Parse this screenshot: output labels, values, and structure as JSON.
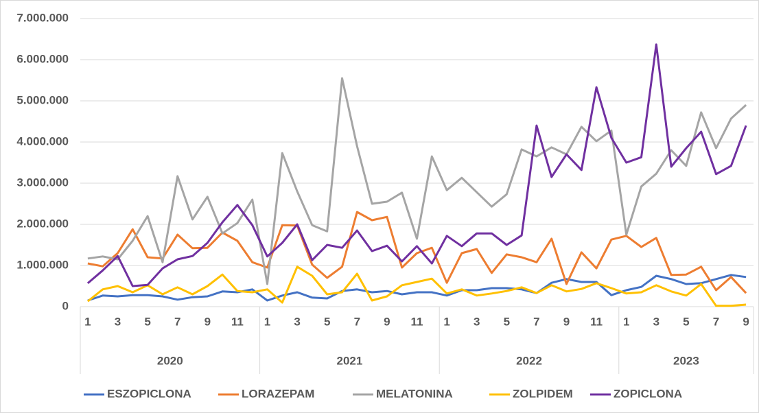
{
  "chart_data": {
    "type": "line",
    "categories": [
      "1",
      null,
      "3",
      null,
      "5",
      null,
      "7",
      null,
      "9",
      null,
      "11",
      null,
      "1",
      null,
      "3",
      null,
      "5",
      null,
      "7",
      null,
      "9",
      null,
      "11",
      null,
      "1",
      null,
      "3",
      null,
      "5",
      null,
      "7",
      null,
      "9",
      null,
      "11",
      null,
      "1",
      null,
      "3",
      null,
      "5",
      null,
      "7",
      null,
      "9"
    ],
    "x_groups": [
      {
        "label": "2020",
        "count": 12
      },
      {
        "label": "2021",
        "count": 12
      },
      {
        "label": "2022",
        "count": 12
      },
      {
        "label": "2023",
        "count": 9
      }
    ],
    "ylim": [
      0,
      7000000
    ],
    "yticks": [
      0,
      {
        "value": 1000000,
        "label": "1.000.000"
      },
      {
        "value": 2000000,
        "label": "2.000.000"
      },
      {
        "value": 3000000,
        "label": "3.000.000"
      },
      {
        "value": 4000000,
        "label": "4.000.000"
      },
      {
        "value": 5000000,
        "label": "5.000.000"
      },
      {
        "value": 6000000,
        "label": "6.000.000"
      },
      {
        "value": 7000000,
        "label": "7.000.000"
      }
    ],
    "grid": true,
    "legend": "bottom",
    "series": [
      {
        "name": "ESZOPICLONA",
        "color": "#4472c4",
        "values": [
          150000,
          270000,
          250000,
          280000,
          280000,
          250000,
          170000,
          230000,
          250000,
          370000,
          350000,
          420000,
          150000,
          270000,
          350000,
          220000,
          200000,
          380000,
          420000,
          350000,
          380000,
          300000,
          350000,
          350000,
          270000,
          400000,
          400000,
          450000,
          450000,
          420000,
          330000,
          580000,
          670000,
          600000,
          600000,
          280000,
          400000,
          480000,
          750000,
          670000,
          550000,
          570000,
          670000,
          770000,
          720000
        ]
      },
      {
        "name": "LORAZEPAM",
        "color": "#ed7d31",
        "values": [
          1050000,
          980000,
          1300000,
          1880000,
          1200000,
          1170000,
          1750000,
          1420000,
          1430000,
          1800000,
          1600000,
          1080000,
          950000,
          1980000,
          1970000,
          1020000,
          700000,
          970000,
          2300000,
          2100000,
          2180000,
          950000,
          1300000,
          1430000,
          580000,
          1300000,
          1400000,
          820000,
          1270000,
          1200000,
          1080000,
          1650000,
          550000,
          1320000,
          930000,
          1630000,
          1720000,
          1450000,
          1670000,
          770000,
          780000,
          970000,
          400000,
          720000,
          330000
        ]
      },
      {
        "name": "MELATONINA",
        "color": "#a5a5a5",
        "values": [
          1170000,
          1220000,
          1150000,
          1600000,
          2200000,
          1080000,
          3170000,
          2120000,
          2670000,
          1780000,
          2030000,
          2600000,
          550000,
          3730000,
          2800000,
          1980000,
          1830000,
          5550000,
          3900000,
          2500000,
          2550000,
          2770000,
          1650000,
          3650000,
          2830000,
          3130000,
          2780000,
          2430000,
          2730000,
          3820000,
          3650000,
          3870000,
          3700000,
          4370000,
          4020000,
          4280000,
          1750000,
          2920000,
          3230000,
          3800000,
          3420000,
          4720000,
          3850000,
          4570000,
          4900000
        ]
      },
      {
        "name": "ZOLPIDEM",
        "color": "#ffc000",
        "values": [
          130000,
          420000,
          500000,
          350000,
          520000,
          300000,
          470000,
          300000,
          500000,
          780000,
          380000,
          350000,
          420000,
          100000,
          970000,
          750000,
          300000,
          350000,
          800000,
          150000,
          250000,
          520000,
          600000,
          680000,
          320000,
          420000,
          270000,
          320000,
          380000,
          470000,
          330000,
          520000,
          370000,
          430000,
          570000,
          450000,
          320000,
          350000,
          520000,
          370000,
          270000,
          550000,
          20000,
          20000,
          50000
        ]
      },
      {
        "name": "ZOPICLONA",
        "color": "#7030a0",
        "values": [
          570000,
          880000,
          1230000,
          500000,
          530000,
          930000,
          1150000,
          1230000,
          1550000,
          2050000,
          2470000,
          1980000,
          1220000,
          1550000,
          2000000,
          1130000,
          1500000,
          1430000,
          1850000,
          1350000,
          1480000,
          1100000,
          1470000,
          1050000,
          1720000,
          1470000,
          1780000,
          1780000,
          1500000,
          1730000,
          4400000,
          3150000,
          3700000,
          3320000,
          5330000,
          4100000,
          3500000,
          3630000,
          6370000,
          3400000,
          3850000,
          4250000,
          3220000,
          3420000,
          4400000
        ]
      }
    ]
  }
}
